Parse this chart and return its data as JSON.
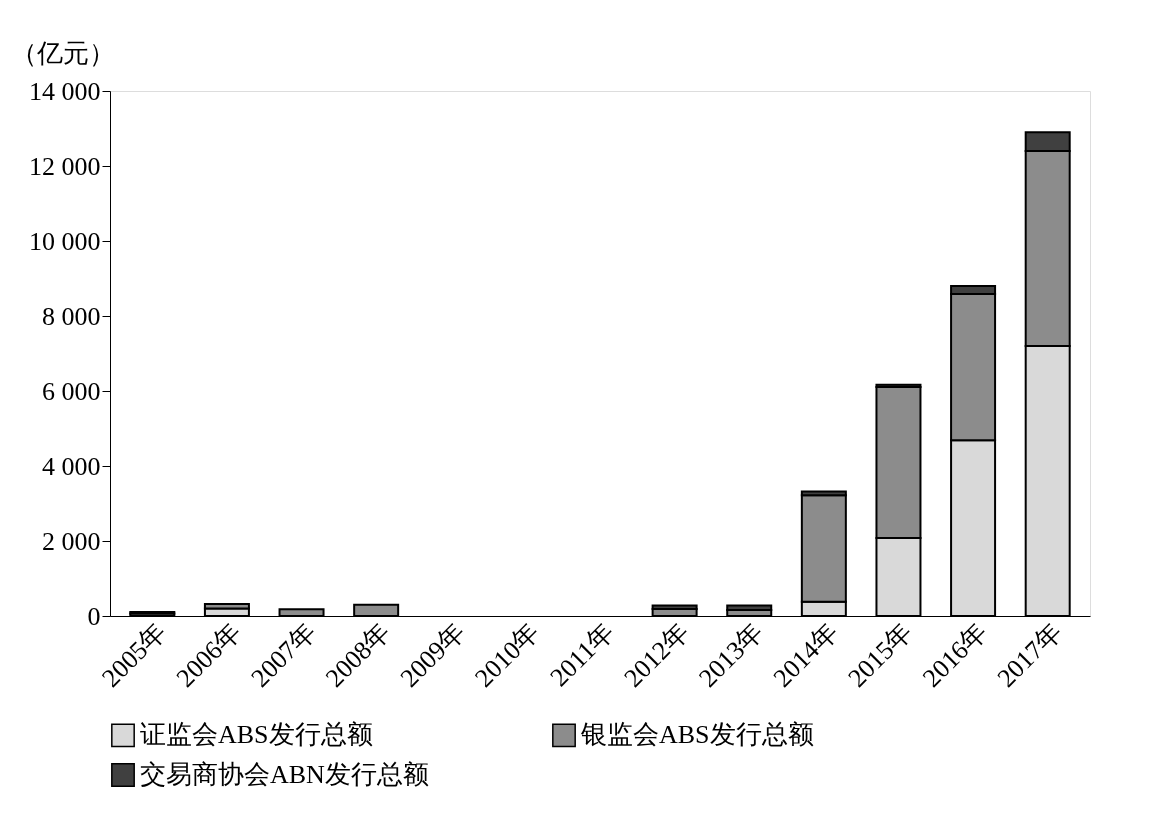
{
  "chart_data": {
    "type": "bar",
    "stacked": true,
    "ylabel": "（亿元）",
    "categories": [
      "2005年",
      "2006年",
      "2007年",
      "2008年",
      "2009年",
      "2010年",
      "2011年",
      "2012年",
      "2013年",
      "2014年",
      "2015年",
      "2016年",
      "2017年"
    ],
    "series": [
      {
        "name": "证监会ABS发行总额",
        "color": "#d9d9d9",
        "values": [
          0,
          200,
          0,
          0,
          0,
          0,
          0,
          0,
          0,
          380,
          2080,
          4690,
          7200
        ]
      },
      {
        "name": "银监会ABS发行总额",
        "color": "#8c8c8c",
        "values": [
          70,
          120,
          180,
          300,
          0,
          0,
          0,
          190,
          160,
          2840,
          4030,
          3900,
          5200
        ]
      },
      {
        "name": "交易商协会ABN发行总额",
        "color": "#404040",
        "values": [
          40,
          0,
          0,
          0,
          0,
          0,
          0,
          90,
          120,
          100,
          60,
          210,
          500
        ]
      }
    ],
    "ylim": [
      0,
      14000
    ],
    "yticks": [
      0,
      {
        "value": 2000,
        "label": "2 000"
      },
      {
        "value": 4000,
        "label": "4 000"
      },
      {
        "value": 6000,
        "label": "6 000"
      },
      {
        "value": 8000,
        "label": "8 000"
      },
      {
        "value": 10000,
        "label": "10 000"
      },
      {
        "value": 12000,
        "label": "12 000"
      },
      {
        "value": 14000,
        "label": "14 000"
      }
    ],
    "grid": false,
    "legend": "bottom"
  }
}
